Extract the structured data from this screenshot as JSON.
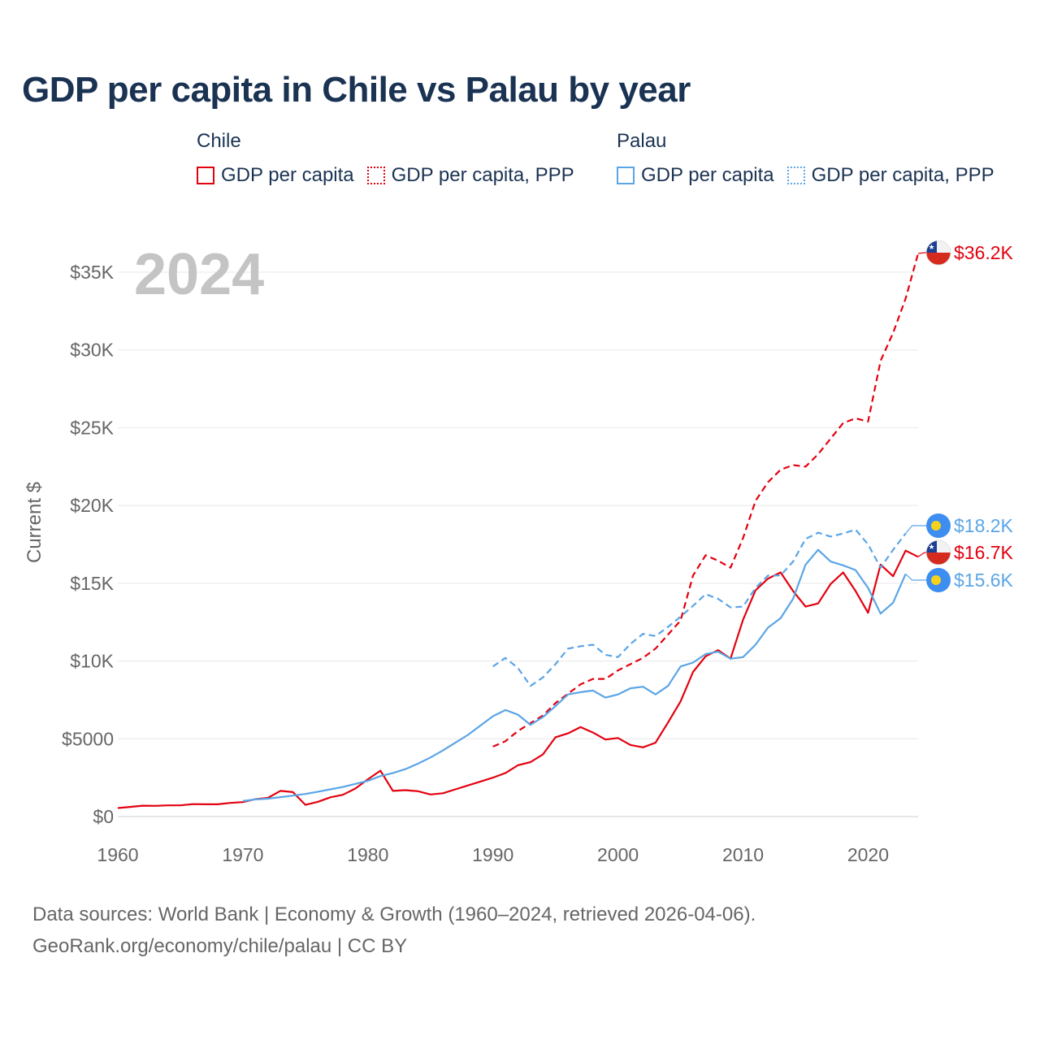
{
  "title": "GDP per capita in Chile vs Palau by year",
  "legend": {
    "chile": {
      "name": "Chile",
      "gdp": "GDP per capita",
      "ppp": "GDP per capita, PPP"
    },
    "palau": {
      "name": "Palau",
      "gdp": "GDP per capita",
      "ppp": "GDP per capita, PPP"
    }
  },
  "year_label": "2024",
  "source_line1": "Data sources: World Bank | Economy & Growth (1960–2024, retrieved 2026-04-06).",
  "source_line2": "GeoRank.org/economy/chile/palau | CC BY",
  "colors": {
    "chile": "#e3000f",
    "palau": "#5aa5e6",
    "grid": "#e6e6e6",
    "axis_text": "#666666",
    "title": "#1b3353"
  },
  "chart_data": {
    "type": "line",
    "title": "GDP per capita in Chile vs Palau by year",
    "xlabel": "",
    "ylabel": "Current $",
    "xlim": [
      1960,
      2024
    ],
    "ylim": [
      0,
      37000
    ],
    "x_ticks": [
      1960,
      1970,
      1980,
      1990,
      2000,
      2010,
      2020
    ],
    "y_ticks": [
      {
        "value": 0,
        "label": "$0"
      },
      {
        "value": 5000,
        "label": "$5000"
      },
      {
        "value": 10000,
        "label": "$10K"
      },
      {
        "value": 15000,
        "label": "$15K"
      },
      {
        "value": 20000,
        "label": "$20K"
      },
      {
        "value": 25000,
        "label": "$25K"
      },
      {
        "value": 30000,
        "label": "$30K"
      },
      {
        "value": 35000,
        "label": "$35K"
      }
    ],
    "series": [
      {
        "name": "Chile GDP per capita",
        "country": "chile",
        "style": "solid",
        "start_year": 1960,
        "values": [
          550,
          620,
          700,
          690,
          720,
          720,
          800,
          790,
          790,
          880,
          930,
          1120,
          1200,
          1650,
          1570,
          750,
          950,
          1240,
          1400,
          1800,
          2400,
          2950,
          1650,
          1700,
          1630,
          1420,
          1500,
          1750,
          2000,
          2250,
          2500,
          2800,
          3300,
          3500,
          4000,
          5100,
          5350,
          5750,
          5400,
          4950,
          5050,
          4600,
          4450,
          4750,
          6050,
          7400,
          9300,
          10300,
          10700,
          10150,
          12650,
          14550,
          15300,
          15700,
          14500,
          13500,
          13700,
          14950,
          15700,
          14500,
          13100,
          16200,
          15450,
          17100,
          16700
        ],
        "end_label": "$16.7K"
      },
      {
        "name": "Chile GDP per capita, PPP",
        "country": "chile",
        "style": "dashed",
        "start_year": 1990,
        "values": [
          4500,
          4850,
          5500,
          6000,
          6500,
          7300,
          7900,
          8500,
          8850,
          8850,
          9400,
          9800,
          10200,
          10800,
          11700,
          12600,
          15500,
          16800,
          16450,
          16000,
          17900,
          20300,
          21500,
          22300,
          22600,
          22500,
          23300,
          24300,
          25300,
          25600,
          25400,
          29300,
          31100,
          33300,
          36200
        ],
        "end_label": "$36.2K"
      },
      {
        "name": "Palau GDP per capita",
        "country": "palau",
        "style": "solid",
        "start_year": 1970,
        "values": [
          1000,
          1100,
          1150,
          1250,
          1350,
          1450,
          1600,
          1750,
          1900,
          2100,
          2300,
          2600,
          2800,
          3050,
          3400,
          3800,
          4250,
          4750,
          5250,
          5850,
          6450,
          6850,
          6550,
          5900,
          6400,
          7100,
          7850,
          8000,
          8100,
          7650,
          7850,
          8250,
          8350,
          7850,
          8400,
          9650,
          9900,
          10450,
          10600,
          10150,
          10250,
          11050,
          12150,
          12750,
          14000,
          16200,
          17150,
          16400,
          16150,
          15850,
          14700,
          13050,
          13750,
          15600
        ],
        "end_label": "$15.6K"
      },
      {
        "name": "Palau GDP per capita, PPP",
        "country": "palau",
        "style": "dashed",
        "start_year": 1990,
        "values": [
          9650,
          10200,
          9550,
          8400,
          8950,
          9800,
          10800,
          10950,
          11050,
          10400,
          10250,
          11100,
          11750,
          11600,
          12200,
          12850,
          13550,
          14300,
          14000,
          13450,
          13500,
          14700,
          15500,
          15500,
          16400,
          17850,
          18250,
          18000,
          18200,
          18450,
          17500,
          16000,
          17150,
          18200
        ],
        "end_label": "$18.2K"
      }
    ]
  }
}
